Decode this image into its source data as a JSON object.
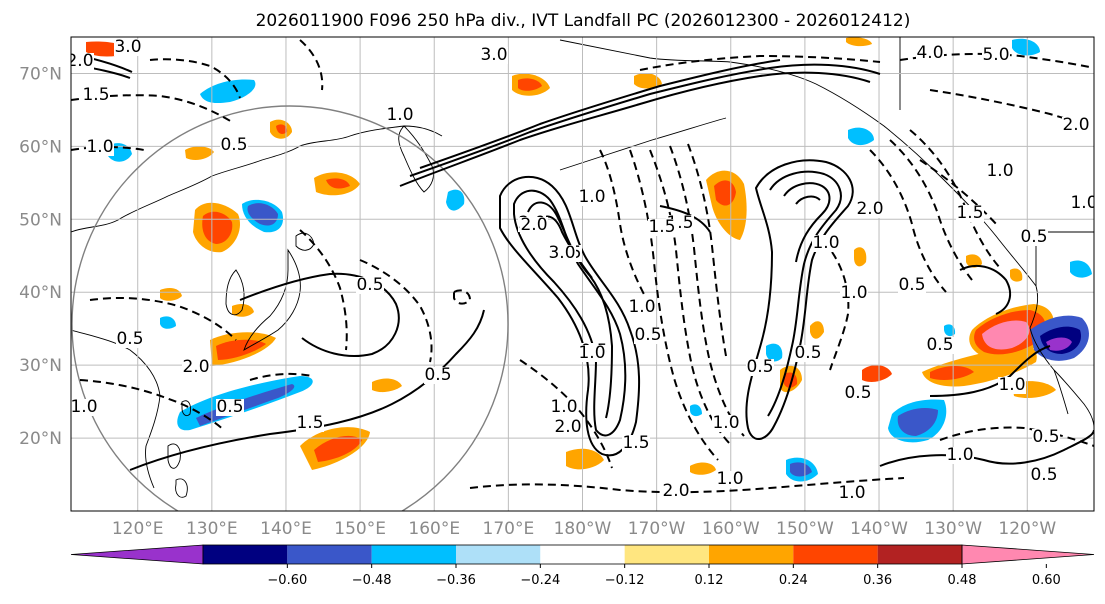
{
  "title": "2026011900 F096 250 hPa div., IVT Landfall PC (2026012300 - 2026012412)",
  "map": {
    "projection": "PlateCarree, central longitude 180",
    "extent": {
      "lon_min": 111,
      "lon_max": 249,
      "lat_min": 10,
      "lat_max": 75
    },
    "lat_labels": [
      "70°N",
      "60°N",
      "50°N",
      "40°N",
      "30°N",
      "20°N"
    ],
    "lat_values": [
      70,
      60,
      50,
      40,
      30,
      20
    ],
    "lon_labels": [
      "120°E",
      "130°E",
      "140°E",
      "150°E",
      "160°E",
      "170°E",
      "180°W",
      "170°W",
      "160°W",
      "150°W",
      "140°W",
      "130°W",
      "120°W"
    ],
    "lon_values": [
      120,
      130,
      140,
      150,
      160,
      170,
      180,
      190,
      200,
      210,
      220,
      230,
      240
    ],
    "gridline_color": "#bdbdbd"
  },
  "contour_labels": [
    "3.0",
    "2.0",
    "1.5",
    "1.0",
    "0.5",
    "3.0",
    "2.0",
    "1.5",
    "1.0",
    "0.5",
    "1.5",
    "1.0",
    "0.5",
    "0.5",
    "1.0",
    "1.5",
    "2.0",
    "3.0",
    "4.0",
    "5.0",
    "2.0",
    "1.0",
    "1.5",
    "0.5",
    "1.0",
    "0.5",
    "1.0",
    "0.5",
    "2.0",
    "1.0",
    "0.5",
    "0.5",
    "1.0",
    "0.5",
    "2.0",
    "1.5",
    "1.0",
    "0.5",
    "1.0",
    "1.5",
    "2.0",
    "1.0",
    "0.5",
    "1.0",
    "0.5",
    "1.0",
    "0.5",
    "1.0",
    "0.5",
    "2.0",
    "1.0"
  ],
  "colorbar": {
    "tick_labels": [
      "−0.60",
      "−0.48",
      "−0.36",
      "−0.24",
      "−0.12",
      "0.12",
      "0.24",
      "0.36",
      "0.48",
      "0.60"
    ],
    "colors": [
      "#9932cc",
      "#000080",
      "#3a57c9",
      "#00bfff",
      "#aee0f8",
      "#ffffff",
      "#ffe680",
      "#ffa500",
      "#ff4500",
      "#b22222",
      "#ff88b0"
    ],
    "extend": "both"
  },
  "legend_colors": {
    "negative_contour": "#000000",
    "positive_contour": "#000000",
    "coastline": "#000000",
    "circle": "#808080"
  }
}
